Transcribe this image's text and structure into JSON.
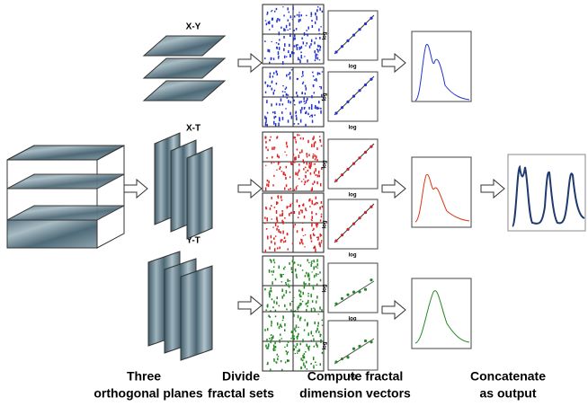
{
  "planes": [
    {
      "label": "X-Y"
    },
    {
      "label": "X-T"
    },
    {
      "label": "Y-T"
    }
  ],
  "loglog_plots": [
    {
      "x_label": "log",
      "y_label": "log"
    },
    {
      "x_label": "log",
      "y_label": "log"
    },
    {
      "x_label": "log",
      "y_label": "log"
    },
    {
      "x_label": "log",
      "y_label": "log"
    },
    {
      "x_label": "log",
      "y_label": "log"
    },
    {
      "x_label": "log",
      "y_label": "log"
    }
  ],
  "steps": [
    {
      "lines": [
        "Three",
        "orthogonal planes"
      ]
    },
    {
      "lines": [
        "Divide",
        "fractal sets"
      ]
    },
    {
      "lines": [
        "Compute fractal",
        "dimension vectors"
      ]
    },
    {
      "lines": [
        "Concatenate",
        "as output"
      ]
    }
  ]
}
